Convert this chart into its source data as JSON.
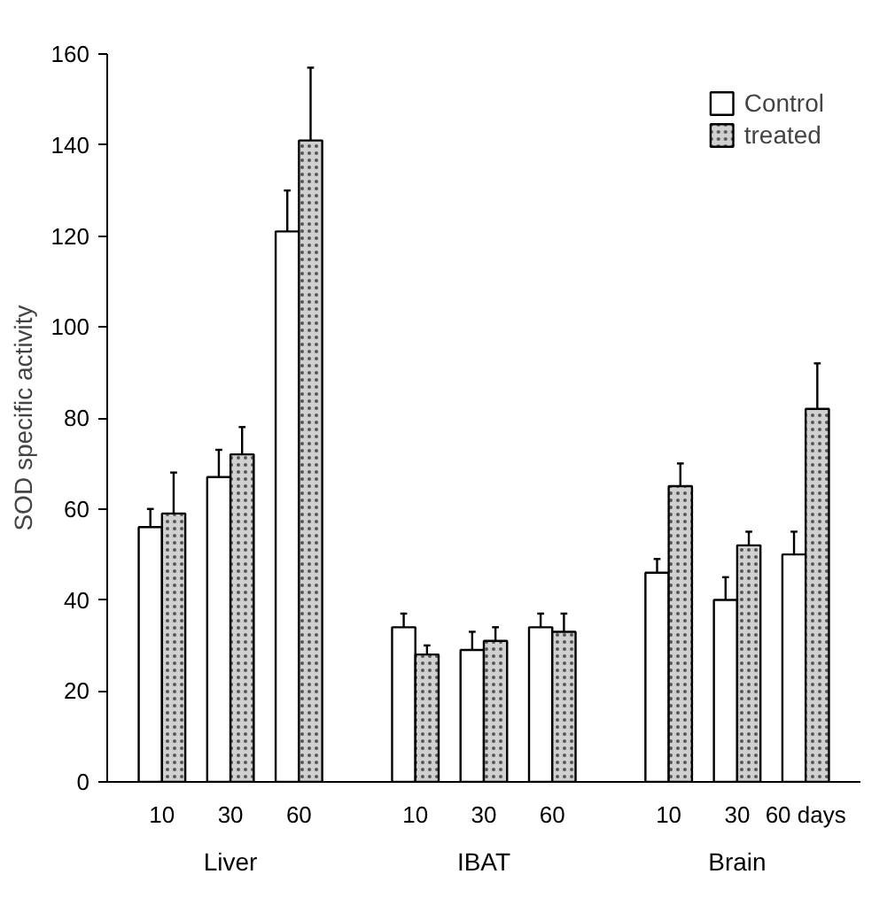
{
  "chart_data": {
    "type": "bar",
    "ylabel": "SOD specific activity",
    "categories": [
      "10",
      "30",
      "60",
      "10",
      "30",
      "60",
      "10",
      "30",
      "60 days"
    ],
    "series": [
      {
        "name": "Control",
        "color": "#ffffff",
        "values": [
          56,
          67,
          121,
          34,
          29,
          34,
          46,
          40,
          50
        ],
        "errors": [
          [
            56,
            60
          ],
          [
            67,
            73
          ],
          [
            121,
            130
          ],
          [
            34,
            37
          ],
          [
            29,
            33
          ],
          [
            34,
            37
          ],
          [
            46,
            49
          ],
          [
            40,
            45
          ],
          [
            50,
            55
          ]
        ]
      },
      {
        "name": "treated",
        "color": "#d0d0d0",
        "values": [
          59,
          72,
          141,
          28,
          31,
          33,
          65,
          52,
          82
        ],
        "errors": [
          [
            59,
            68
          ],
          [
            72,
            78
          ],
          [
            141,
            157
          ],
          [
            28,
            30
          ],
          [
            31,
            34
          ],
          [
            33,
            37
          ],
          [
            65,
            70
          ],
          [
            52,
            55
          ],
          [
            82,
            92
          ]
        ]
      }
    ],
    "annotations": [
      "Liver",
      "IBAT",
      "Brain"
    ],
    "ylim": [
      0,
      160
    ],
    "yticks": [
      0,
      20,
      40,
      60,
      80,
      100,
      120,
      140,
      160
    ],
    "grid": false,
    "legend": "top right"
  }
}
